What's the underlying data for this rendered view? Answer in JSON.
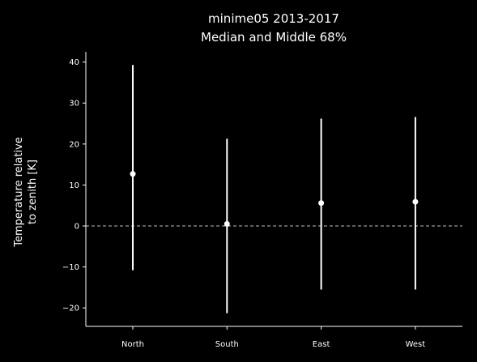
{
  "chart_data": {
    "type": "errorbar",
    "title": "minime05 2013-2017",
    "subtitle": "Median and Middle 68%",
    "ylabel_line1": "Temperature relative",
    "ylabel_line2": "to zenith [K]",
    "xlabel": "",
    "categories": [
      "North",
      "South",
      "East",
      "West"
    ],
    "median": [
      12.7,
      0.5,
      5.6,
      5.9
    ],
    "lower": [
      -10.8,
      -21.3,
      -15.5,
      -15.5
    ],
    "upper": [
      39.3,
      21.3,
      26.2,
      26.6
    ],
    "ylim": [
      -24.5,
      42.5
    ],
    "yticks": [
      -20,
      -10,
      0,
      10,
      20,
      30,
      40
    ],
    "ytick_labels": [
      "−20",
      "−10",
      "0",
      "10",
      "20",
      "30",
      "40"
    ],
    "reference_line": 0,
    "grid": false,
    "legend": "none",
    "colors": {
      "background": "#000000",
      "foreground": "#ffffff"
    }
  }
}
